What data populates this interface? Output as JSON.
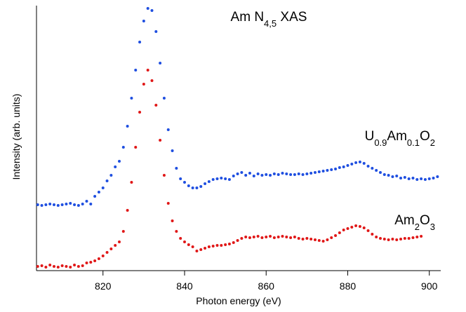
{
  "chart_data": {
    "type": "scatter",
    "title": [
      "Am N",
      "4,5",
      " XAS"
    ],
    "xlabel": "Photon energy (eV)",
    "ylabel": "Intensity (arb. units)",
    "xlim": [
      803.7,
      902.8
    ],
    "xticks": [
      820,
      840,
      860,
      880,
      900
    ],
    "ylim": [
      0,
      378
    ],
    "series": [
      {
        "name": [
          "U",
          "0.9",
          "Am",
          "0.1",
          "O",
          "2"
        ],
        "color": "#1f4fe0",
        "x": [
          804,
          805,
          806,
          807,
          808,
          809,
          810,
          811,
          812,
          813,
          814,
          815,
          816,
          817,
          818,
          819,
          820,
          821,
          822,
          823,
          824,
          825,
          826,
          827,
          828,
          829,
          830,
          831,
          832,
          833,
          834,
          835,
          836,
          837,
          838,
          839,
          840,
          841,
          842,
          843,
          844,
          845,
          846,
          847,
          848,
          849,
          850,
          851,
          852,
          853,
          854,
          855,
          856,
          857,
          858,
          859,
          860,
          861,
          862,
          863,
          864,
          865,
          866,
          867,
          868,
          869,
          870,
          871,
          872,
          873,
          874,
          875,
          876,
          877,
          878,
          879,
          880,
          881,
          882,
          883,
          884,
          885,
          886,
          887,
          888,
          889,
          890,
          891,
          892,
          893,
          894,
          895,
          896,
          897,
          898,
          899,
          900,
          901,
          902
        ],
        "values": [
          94,
          93,
          94,
          95,
          94,
          93,
          94,
          95,
          96,
          94,
          93,
          95,
          99,
          95,
          106,
          112,
          118,
          128,
          136,
          148,
          156,
          176,
          206,
          246,
          286,
          326,
          356,
          374,
          371,
          341,
          296,
          246,
          201,
          171,
          146,
          131,
          126,
          121,
          118,
          118,
          120,
          124,
          127,
          130,
          131,
          132,
          131,
          130,
          135,
          138,
          140,
          136,
          139,
          135,
          138,
          136,
          137,
          136,
          138,
          137,
          139,
          138,
          137,
          137,
          138,
          137,
          138,
          139,
          140,
          141,
          142,
          143,
          144,
          145,
          147,
          148,
          150,
          152,
          154,
          155,
          153,
          149,
          146,
          143,
          140,
          137,
          136,
          134,
          135,
          132,
          133,
          131,
          132,
          130,
          131,
          130,
          131,
          132,
          134
        ]
      },
      {
        "name": [
          "Am",
          "2",
          "O",
          "3"
        ],
        "color": "#e01818",
        "x": [
          804,
          805,
          806,
          807,
          808,
          809,
          810,
          811,
          812,
          813,
          814,
          815,
          816,
          817,
          818,
          819,
          820,
          821,
          822,
          823,
          824,
          825,
          826,
          827,
          828,
          829,
          830,
          831,
          832,
          833,
          834,
          835,
          836,
          837,
          838,
          839,
          840,
          841,
          842,
          843,
          844,
          845,
          846,
          847,
          848,
          849,
          850,
          851,
          852,
          853,
          854,
          855,
          856,
          857,
          858,
          859,
          860,
          861,
          862,
          863,
          864,
          865,
          866,
          867,
          868,
          869,
          870,
          871,
          872,
          873,
          874,
          875,
          876,
          877,
          878,
          879,
          880,
          881,
          882,
          883,
          884,
          885,
          886,
          887,
          888,
          889,
          890,
          891,
          892,
          893,
          894,
          895,
          896,
          897,
          898
        ],
        "values": [
          6,
          7,
          5,
          8,
          6,
          5,
          7,
          6,
          5,
          8,
          6,
          7,
          11,
          12,
          14,
          17,
          21,
          26,
          31,
          36,
          41,
          56,
          86,
          126,
          176,
          226,
          266,
          286,
          271,
          236,
          186,
          136,
          96,
          71,
          56,
          46,
          41,
          37,
          34,
          28,
          30,
          32,
          34,
          35,
          36,
          36,
          37,
          38,
          40,
          43,
          46,
          48,
          47,
          48,
          49,
          47,
          48,
          49,
          47,
          48,
          49,
          48,
          47,
          48,
          46,
          45,
          46,
          45,
          44,
          43,
          42,
          44,
          47,
          50,
          54,
          58,
          60,
          62,
          64,
          63,
          61,
          57,
          52,
          48,
          46,
          45,
          44,
          45,
          44,
          45,
          46,
          46,
          47,
          48,
          49
        ]
      }
    ]
  }
}
